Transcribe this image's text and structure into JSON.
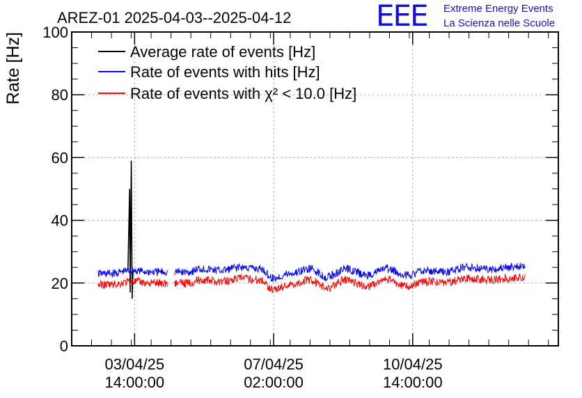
{
  "chart_data": {
    "type": "line",
    "title": "AREZ-01 2025-04-03--2025-04-12",
    "ylabel": "Rate [Hz]",
    "xlabel": "",
    "ylim": [
      0,
      100
    ],
    "y_ticks": [
      0,
      20,
      40,
      60,
      80,
      100
    ],
    "x_ticks": [
      {
        "at": "2025-04-03 14:00:00",
        "label_date": "03/04/25",
        "label_time": "14:00:00"
      },
      {
        "at": "2025-04-07 02:00:00",
        "label_date": "07/04/25",
        "label_time": "02:00:00"
      },
      {
        "at": "2025-04-10 14:00:00",
        "label_date": "10/04/25",
        "label_time": "14:00:00"
      }
    ],
    "xlim": [
      "2025-04-02 00:00:00",
      "2025-04-14 06:00:00"
    ],
    "grid": true,
    "legend_position": "top-left",
    "legend": [
      {
        "label": "Average rate of events [Hz]",
        "color": "#000000"
      },
      {
        "label": "Rate of events with hits [Hz]",
        "color": "#0000ff"
      },
      {
        "label": "Rate of events with χ² < 10.0 [Hz]",
        "color": "#ff0000"
      }
    ],
    "series": [
      {
        "name": "Average rate of events [Hz]",
        "color": "#000000",
        "points": [
          {
            "x": "2025-04-03 10:00:00",
            "y": 24
          },
          {
            "x": "2025-04-03 11:00:00",
            "y": 50
          },
          {
            "x": "2025-04-03 11:20:00",
            "y": 17
          },
          {
            "x": "2025-04-03 12:00:00",
            "y": 59
          },
          {
            "x": "2025-04-03 12:30:00",
            "y": 15
          },
          {
            "x": "2025-04-03 13:00:00",
            "y": 24
          }
        ]
      },
      {
        "name": "Rate of events with hits [Hz]",
        "color": "#0000ff",
        "points": [
          {
            "x": "2025-04-02 16:00:00",
            "y": 23.0
          },
          {
            "x": "2025-04-03 00:00:00",
            "y": 23.0
          },
          {
            "x": "2025-04-03 12:00:00",
            "y": 24.0
          },
          {
            "x": "2025-04-04 00:00:00",
            "y": 23.5
          },
          {
            "x": "2025-04-04 22:00:00",
            "y": 23.5
          },
          {
            "x": "2025-04-05 06:00:00",
            "y": 24.5
          },
          {
            "x": "2025-04-05 18:00:00",
            "y": 24.0
          },
          {
            "x": "2025-04-06 06:00:00",
            "y": 25.0
          },
          {
            "x": "2025-04-06 18:00:00",
            "y": 24.5
          },
          {
            "x": "2025-04-07 02:00:00",
            "y": 21.5
          },
          {
            "x": "2025-04-07 12:00:00",
            "y": 23.0
          },
          {
            "x": "2025-04-08 00:00:00",
            "y": 24.5
          },
          {
            "x": "2025-04-08 10:00:00",
            "y": 22.0
          },
          {
            "x": "2025-04-08 22:00:00",
            "y": 24.5
          },
          {
            "x": "2025-04-09 10:00:00",
            "y": 22.5
          },
          {
            "x": "2025-04-09 22:00:00",
            "y": 24.5
          },
          {
            "x": "2025-04-10 10:00:00",
            "y": 22.5
          },
          {
            "x": "2025-04-10 22:00:00",
            "y": 24.0
          },
          {
            "x": "2025-04-11 10:00:00",
            "y": 23.5
          },
          {
            "x": "2025-04-11 22:00:00",
            "y": 25.0
          },
          {
            "x": "2025-04-12 12:00:00",
            "y": 24.5
          },
          {
            "x": "2025-04-13 02:00:00",
            "y": 25.0
          },
          {
            "x": "2025-04-13 10:00:00",
            "y": 25.5
          }
        ]
      },
      {
        "name": "Rate of events with χ² < 10.0 [Hz]",
        "color": "#ff0000",
        "points": [
          {
            "x": "2025-04-02 16:00:00",
            "y": 19.5
          },
          {
            "x": "2025-04-03 00:00:00",
            "y": 19.5
          },
          {
            "x": "2025-04-03 12:00:00",
            "y": 20.5
          },
          {
            "x": "2025-04-04 00:00:00",
            "y": 20.0
          },
          {
            "x": "2025-04-04 22:00:00",
            "y": 20.0
          },
          {
            "x": "2025-04-05 06:00:00",
            "y": 21.0
          },
          {
            "x": "2025-04-05 18:00:00",
            "y": 20.5
          },
          {
            "x": "2025-04-06 06:00:00",
            "y": 21.5
          },
          {
            "x": "2025-04-06 18:00:00",
            "y": 21.0
          },
          {
            "x": "2025-04-07 02:00:00",
            "y": 18.0
          },
          {
            "x": "2025-04-07 12:00:00",
            "y": 19.5
          },
          {
            "x": "2025-04-08 00:00:00",
            "y": 21.0
          },
          {
            "x": "2025-04-08 10:00:00",
            "y": 18.5
          },
          {
            "x": "2025-04-08 22:00:00",
            "y": 21.0
          },
          {
            "x": "2025-04-09 10:00:00",
            "y": 19.0
          },
          {
            "x": "2025-04-09 22:00:00",
            "y": 21.0
          },
          {
            "x": "2025-04-10 10:00:00",
            "y": 19.0
          },
          {
            "x": "2025-04-10 22:00:00",
            "y": 20.5
          },
          {
            "x": "2025-04-11 10:00:00",
            "y": 20.0
          },
          {
            "x": "2025-04-11 22:00:00",
            "y": 21.5
          },
          {
            "x": "2025-04-12 12:00:00",
            "y": 21.0
          },
          {
            "x": "2025-04-13 02:00:00",
            "y": 21.5
          },
          {
            "x": "2025-04-13 10:00:00",
            "y": 22.0
          }
        ]
      }
    ]
  },
  "logo": {
    "mark": "EEE",
    "line1": "Extreme Energy Events",
    "line2": "La Scienza nelle Scuole",
    "color": "#1111dd"
  }
}
